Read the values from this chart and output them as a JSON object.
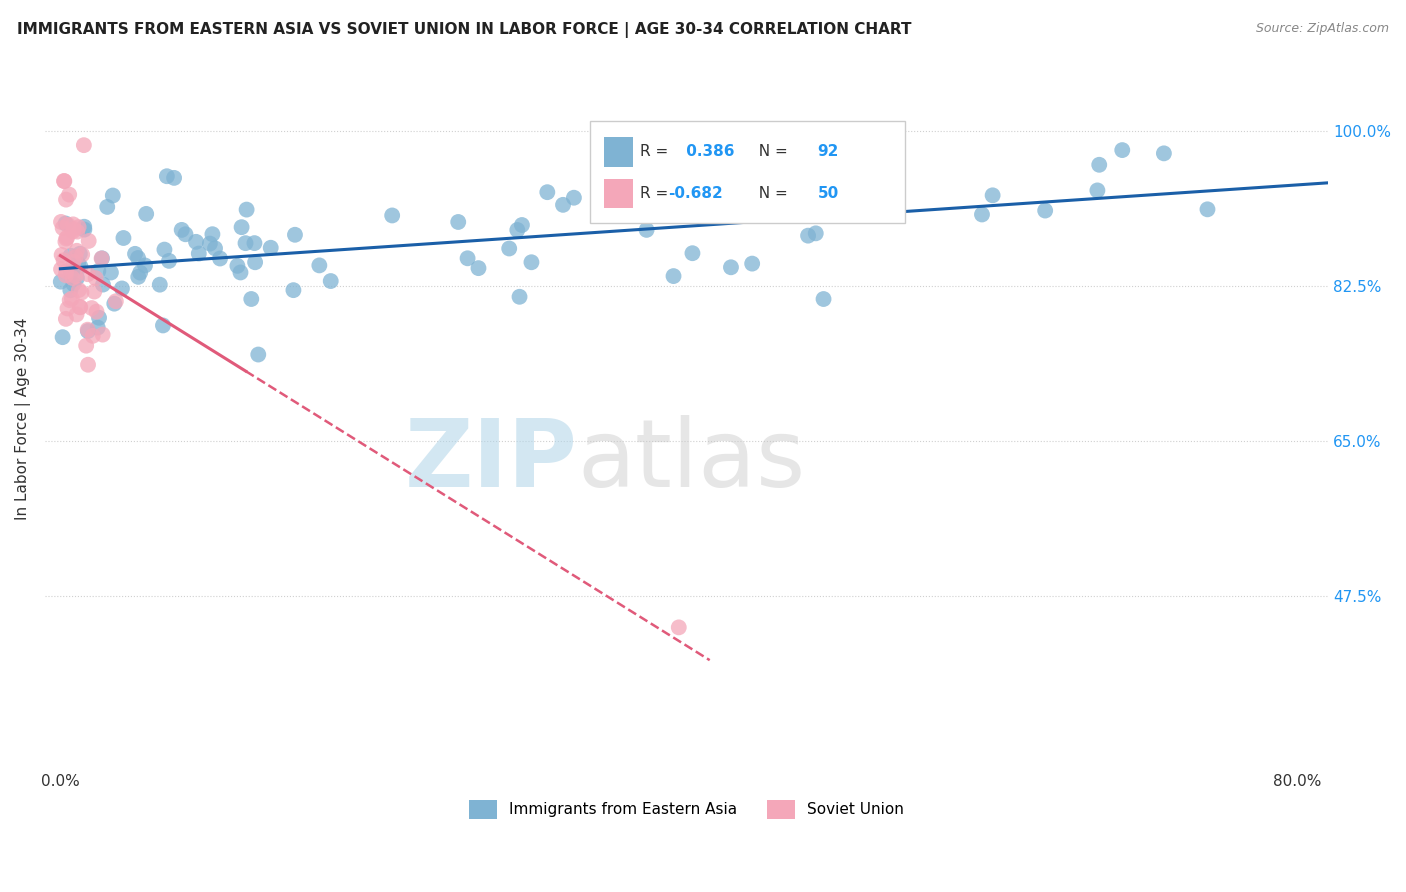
{
  "title": "IMMIGRANTS FROM EASTERN ASIA VS SOVIET UNION IN LABOR FORCE | AGE 30-34 CORRELATION CHART",
  "source": "Source: ZipAtlas.com",
  "ylabel": "In Labor Force | Age 30-34",
  "blue_R": 0.386,
  "blue_N": 92,
  "pink_R": -0.682,
  "pink_N": 50,
  "blue_color": "#7fb3d3",
  "pink_color": "#f4a7b9",
  "blue_line_color": "#1a5fa8",
  "pink_line_color": "#e05a7a",
  "watermark_zip": "ZIP",
  "watermark_atlas": "atlas",
  "background_color": "#ffffff",
  "grid_color": "#d0d0d0",
  "yticks": [
    0.475,
    0.65,
    0.825,
    1.0
  ],
  "ytick_labels": [
    "47.5%",
    "65.0%",
    "82.5%",
    "100.0%"
  ],
  "xlim_min": -0.01,
  "xlim_max": 0.82,
  "ylim_min": 0.28,
  "ylim_max": 1.07
}
